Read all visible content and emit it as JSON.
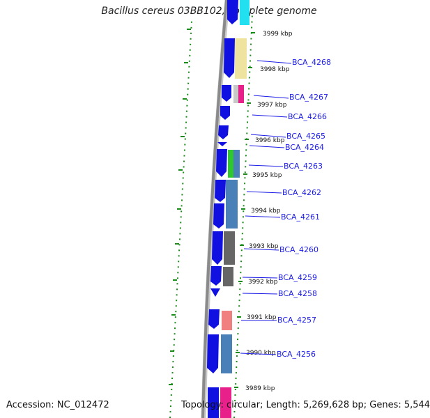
{
  "title": "Bacillus cereus 03BB102, complete genome",
  "accession": "Accession: NC_012472",
  "topology": "Topology: circular; Length: 5,269,628 bp; Genes: 5,544",
  "kbp_labels": [
    "3999 kbp",
    "3998 kbp",
    "3997 kbp",
    "3996 kbp",
    "3995 kbp",
    "3994 kbp",
    "3993 kbp",
    "3992 kbp",
    "3991 kbp",
    "3990 kbp",
    "3989 kbp"
  ],
  "genes": [
    "BCA_4268",
    "BCA_4267",
    "BCA_4266",
    "BCA_4265",
    "BCA_4264",
    "BCA_4263",
    "BCA_4262",
    "BCA_4261",
    "BCA_4260",
    "BCA_4259",
    "BCA_4258",
    "BCA_4257",
    "BCA_4256"
  ],
  "colors": {
    "cds": "#1010e0",
    "backbone": "#888888",
    "gc_skew": "#1a8a1a",
    "label": "#1a1ae6",
    "cog_yellow": "#efe3a0",
    "cog_pink": "#e8208a",
    "cog_green": "#2ec82e",
    "cog_steelblue": "#4a80b8",
    "cog_gray": "#666666",
    "cog_salmon": "#f08080",
    "cog_cyan": "#22e0f0"
  }
}
